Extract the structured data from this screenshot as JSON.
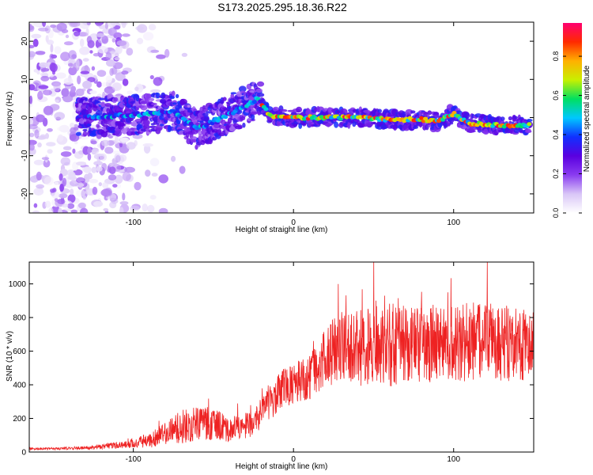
{
  "title": "S173.2025.295.18.36.R22",
  "colors": {
    "snr_line": "#ee2222",
    "colormap": [
      "#ffffff",
      "#d9c6f7",
      "#8a3cf0",
      "#5a00e0",
      "#1030ff",
      "#00c8ff",
      "#00e060",
      "#c8f000",
      "#ffb000",
      "#ff2a00",
      "#ff0070"
    ]
  },
  "chart_data": [
    {
      "id": "spectrogram",
      "type": "heatmap",
      "xlabel": "Height of straight line (km)",
      "ylabel": "Frequency (Hz)",
      "xlim": [
        -165,
        150
      ],
      "ylim": [
        -25,
        25
      ],
      "xticks": [
        -100,
        0,
        100
      ],
      "yticks": [
        -20,
        -10,
        0,
        10,
        20
      ],
      "colorbar": {
        "label": "Normalized spectral amplitude",
        "range": [
          0,
          0.97
        ],
        "ticks": [
          0.0,
          0.2,
          0.4,
          0.6,
          0.8
        ]
      },
      "ridge": {
        "description": "dominant frequency track",
        "x": [
          -130,
          -110,
          -90,
          -75,
          -60,
          -50,
          -40,
          -30,
          -22,
          -15,
          0,
          20,
          40,
          60,
          80,
          90,
          100,
          110,
          130,
          148
        ],
        "y": [
          0,
          0.5,
          1,
          1.5,
          -3,
          -1,
          1,
          3,
          5,
          0.5,
          0,
          0,
          0,
          -0.5,
          -0.5,
          -1,
          1,
          -1.5,
          -2,
          -2
        ]
      }
    },
    {
      "id": "snr",
      "type": "line",
      "xlabel": "Height of straight line (km)",
      "ylabel": "SNR (10 * v/v)",
      "xlim": [
        -165,
        150
      ],
      "ylim": [
        0,
        1130
      ],
      "xticks": [
        -100,
        0,
        100
      ],
      "yticks": [
        0,
        200,
        400,
        600,
        800,
        1000
      ],
      "series": [
        {
          "name": "SNR",
          "x": [
            -165,
            -150,
            -130,
            -110,
            -100,
            -90,
            -80,
            -70,
            -60,
            -50,
            -40,
            -30,
            -25,
            -20,
            -15,
            -10,
            -5,
            0,
            5,
            10,
            15,
            20,
            25,
            30,
            40,
            50,
            60,
            70,
            80,
            90,
            100,
            110,
            120,
            130,
            140,
            150
          ],
          "y": [
            20,
            20,
            25,
            40,
            55,
            70,
            110,
            150,
            170,
            170,
            130,
            150,
            190,
            240,
            300,
            340,
            380,
            400,
            430,
            450,
            500,
            560,
            600,
            610,
            620,
            630,
            640,
            650,
            640,
            650,
            640,
            660,
            650,
            650,
            640,
            650
          ],
          "spread": [
            15,
            15,
            20,
            40,
            60,
            90,
            140,
            200,
            200,
            200,
            150,
            170,
            180,
            200,
            220,
            230,
            250,
            250,
            260,
            280,
            300,
            350,
            400,
            400,
            450,
            480,
            500,
            500,
            470,
            470,
            460,
            480,
            470,
            460,
            440,
            420
          ]
        }
      ]
    }
  ]
}
